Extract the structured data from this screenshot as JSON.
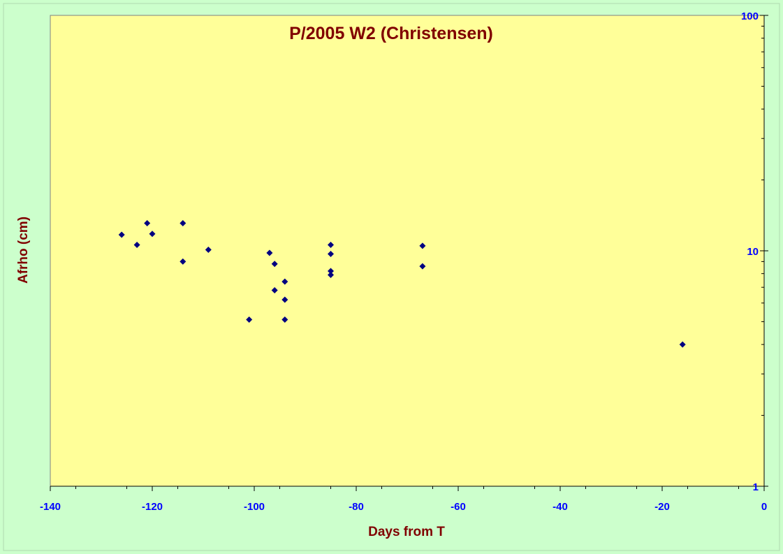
{
  "chart_data": {
    "type": "scatter",
    "title": "P/2005 W2 (Christensen)",
    "xlabel": "Days from T",
    "ylabel": "Afrho (cm)",
    "xlim": [
      -140,
      0
    ],
    "ylim": [
      1,
      100
    ],
    "y_scale": "log",
    "y_axis_position": "right",
    "grid": false,
    "x_ticks": [
      -140,
      -120,
      -100,
      -80,
      -60,
      -40,
      -20,
      0
    ],
    "y_ticks": [
      1,
      10,
      100
    ],
    "colors": {
      "plot_background": "#ffff99",
      "page_background": "#ccffcc",
      "marker": "#000080",
      "title": "#800000",
      "tick_labels": "#0000ff"
    },
    "series": [
      {
        "marker": "diamond",
        "points": [
          [
            -126,
            11.7
          ],
          [
            -123,
            10.6
          ],
          [
            -121,
            13.1
          ],
          [
            -120,
            11.8
          ],
          [
            -114,
            13.1
          ],
          [
            -114,
            9.0
          ],
          [
            -109,
            10.1
          ],
          [
            -101,
            5.1
          ],
          [
            -97,
            9.8
          ],
          [
            -96,
            8.8
          ],
          [
            -96,
            6.8
          ],
          [
            -94,
            7.4
          ],
          [
            -94,
            6.2
          ],
          [
            -94,
            5.1
          ],
          [
            -85,
            10.6
          ],
          [
            -85,
            9.7
          ],
          [
            -85,
            8.2
          ],
          [
            -85,
            7.9
          ],
          [
            -67,
            10.5
          ],
          [
            -67,
            8.6
          ],
          [
            -16,
            4.0
          ]
        ]
      }
    ]
  }
}
